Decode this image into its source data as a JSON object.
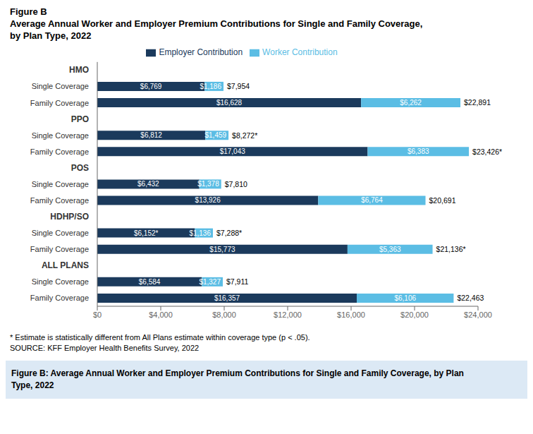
{
  "chart_data": {
    "type": "bar",
    "orientation": "horizontal",
    "stacked": true,
    "data_labels": true,
    "grid": false,
    "legend": "top",
    "title": "Figure B",
    "subtitle": [
      "Average Annual Worker and Employer Premium Contributions for Single and Family Coverage,",
      "by Plan Type, 2022"
    ],
    "categories": [
      "HMO",
      "Single Coverage",
      "Family Coverage",
      "PPO",
      "Single Coverage",
      "Family Coverage",
      "POS",
      "Single Coverage",
      "Family Coverage",
      "HDHP/SO",
      "Single Coverage",
      "Family Coverage",
      "ALL PLANS",
      "Single Coverage",
      "Family Coverage"
    ],
    "series": [
      {
        "name": "Employer Contribution",
        "color": "#1b3a5c",
        "values": [
          null,
          6769,
          16628,
          null,
          6812,
          17043,
          null,
          6432,
          13926,
          null,
          6152,
          15773,
          null,
          6584,
          16357
        ],
        "value_labels": [
          null,
          "$6,769",
          "$16,628",
          null,
          "$6,812",
          "$17,043",
          null,
          "$6,432",
          "$13,926",
          null,
          "$6,152*",
          "$15,773",
          null,
          "$6,584",
          "$16,357"
        ]
      },
      {
        "name": "Worker Contribution",
        "color": "#5bbde4",
        "values": [
          null,
          1186,
          6262,
          null,
          1459,
          6383,
          null,
          1378,
          6764,
          null,
          1136,
          5363,
          null,
          1327,
          6106
        ],
        "value_labels": [
          null,
          "$1,186",
          "$6,262",
          null,
          "$1,459",
          "$6,383",
          null,
          "$1,378",
          "$6,764",
          null,
          "$1,136",
          "$5,363",
          null,
          "$1,327",
          "$6,106"
        ]
      }
    ],
    "total_labels": [
      null,
      "$7,954",
      "$22,891",
      null,
      "$8,272*",
      "$23,426*",
      null,
      "$7,810",
      "$20,691",
      null,
      "$7,288*",
      "$21,136*",
      null,
      "$7,911",
      "$22,463"
    ],
    "xlim": [
      0,
      24000
    ],
    "xticks": [
      {
        "value": 0,
        "label": "$0"
      },
      {
        "value": 4000,
        "label": "$4,000"
      },
      {
        "value": 8000,
        "label": "$8,000"
      },
      {
        "value": 12000,
        "label": "$12,000"
      },
      {
        "value": 16000,
        "label": "$16,000"
      },
      {
        "value": 20000,
        "label": "$20,000"
      },
      {
        "value": 24000,
        "label": "$24,000"
      }
    ],
    "annotations": [
      "* Estimate is statistically different from All Plans estimate within coverage type (p < .05).",
      "SOURCE: KFF Employer Health Benefits Survey, 2022"
    ],
    "footer": [
      "Figure B: Average Annual Worker and Employer Premium Contributions for Single and Family Coverage, by Plan",
      "Type, 2022"
    ],
    "footer_color": "#dce9f5"
  }
}
